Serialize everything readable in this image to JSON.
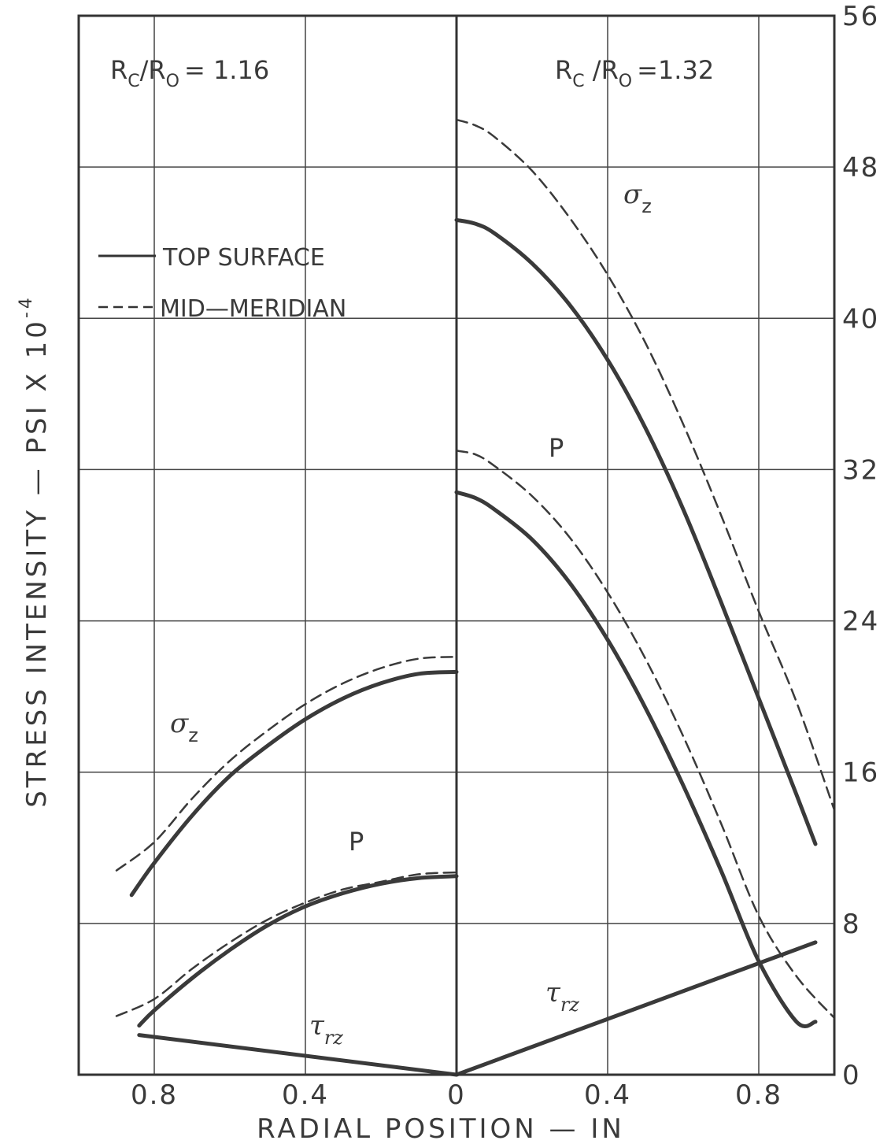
{
  "chart_data": {
    "type": "line",
    "title": "",
    "xlabel": "RADIAL POSITION — IN",
    "ylabel": "STRESS INTENSITY — PSI X 10",
    "ylabel_exponent": "-4",
    "x_ticks": [
      "0.8",
      "0.4",
      "0",
      "0.4",
      "0.8"
    ],
    "y_ticks": [
      "0",
      "8",
      "16",
      "24",
      "32",
      "40",
      "48",
      "56"
    ],
    "ylim": [
      0,
      56
    ],
    "grid": true,
    "legend": {
      "placement": "upper-left",
      "entries": [
        {
          "label": "TOP SURFACE",
          "style": "solid"
        },
        {
          "label": "MID—MERIDIAN",
          "style": "dashed"
        }
      ]
    },
    "panels": [
      {
        "side": "left",
        "annotation": {
          "main": "R",
          "sub1": "C",
          "mid": "/R",
          "sub2": "O",
          "tail": "= 1.16"
        },
        "xlim": [
          1.0,
          0
        ],
        "series": [
          {
            "curve": "sigma_z",
            "style": "solid",
            "x": [
              0.86,
              0.8,
              0.7,
              0.6,
              0.5,
              0.4,
              0.3,
              0.2,
              0.1,
              0.0
            ],
            "y": [
              9.5,
              11.2,
              13.7,
              15.8,
              17.4,
              18.8,
              19.9,
              20.7,
              21.2,
              21.3
            ]
          },
          {
            "curve": "sigma_z",
            "style": "dashed",
            "x": [
              0.9,
              0.8,
              0.7,
              0.6,
              0.5,
              0.4,
              0.3,
              0.2,
              0.1,
              0.0
            ],
            "y": [
              10.8,
              12.3,
              14.6,
              16.6,
              18.2,
              19.6,
              20.7,
              21.5,
              22.0,
              22.1
            ]
          },
          {
            "curve": "P",
            "style": "solid",
            "x": [
              0.84,
              0.8,
              0.7,
              0.6,
              0.5,
              0.4,
              0.3,
              0.2,
              0.1,
              0.0
            ],
            "y": [
              2.6,
              3.4,
              5.1,
              6.6,
              7.9,
              8.9,
              9.6,
              10.1,
              10.4,
              10.5
            ]
          },
          {
            "curve": "P",
            "style": "dashed",
            "x": [
              0.9,
              0.8,
              0.7,
              0.6,
              0.5,
              0.4,
              0.3,
              0.2,
              0.1,
              0.0
            ],
            "y": [
              3.1,
              4.0,
              5.6,
              7.0,
              8.2,
              9.1,
              9.8,
              10.2,
              10.6,
              10.7
            ]
          },
          {
            "curve": "tau_rz",
            "style": "solid",
            "x": [
              0.84,
              0.0
            ],
            "y": [
              2.1,
              0.0
            ]
          }
        ],
        "labels": [
          {
            "text": "σ",
            "sub": "z",
            "curve": "sigma_z"
          },
          {
            "text": "P",
            "sub": "",
            "curve": "P"
          },
          {
            "text": "τ",
            "sub": "rz",
            "curve": "tau_rz"
          }
        ]
      },
      {
        "side": "right",
        "annotation": {
          "main": "R",
          "sub1": "C",
          "mid": " /R",
          "sub2": "O",
          "tail": "=1.32"
        },
        "xlim": [
          0,
          1.0
        ],
        "series": [
          {
            "curve": "sigma_z",
            "style": "solid",
            "x": [
              0.0,
              0.05,
              0.1,
              0.2,
              0.3,
              0.4,
              0.5,
              0.6,
              0.7,
              0.8,
              0.9,
              0.95
            ],
            "y": [
              45.2,
              45.0,
              44.5,
              42.9,
              40.7,
              37.8,
              34.2,
              29.9,
              25.0,
              19.9,
              14.8,
              12.2
            ]
          },
          {
            "curve": "sigma_z",
            "style": "dashed",
            "x": [
              0.0,
              0.05,
              0.1,
              0.2,
              0.3,
              0.4,
              0.5,
              0.6,
              0.7,
              0.8,
              0.9,
              1.0
            ],
            "y": [
              50.5,
              50.2,
              49.6,
              47.8,
              45.3,
              42.3,
              38.7,
              34.4,
              29.6,
              24.5,
              19.7,
              14.0
            ]
          },
          {
            "curve": "P",
            "style": "solid",
            "x": [
              0.0,
              0.05,
              0.1,
              0.2,
              0.3,
              0.4,
              0.5,
              0.6,
              0.7,
              0.8,
              0.9,
              0.95
            ],
            "y": [
              30.8,
              30.5,
              29.9,
              28.3,
              26.0,
              23.0,
              19.4,
              15.3,
              10.8,
              6.0,
              2.8,
              2.8
            ]
          },
          {
            "curve": "P",
            "style": "dashed",
            "x": [
              0.0,
              0.05,
              0.1,
              0.2,
              0.3,
              0.4,
              0.5,
              0.6,
              0.7,
              0.8,
              0.9,
              1.0
            ],
            "y": [
              33.0,
              32.8,
              32.2,
              30.6,
              28.4,
              25.5,
              22.0,
              17.9,
              13.3,
              8.4,
              5.2,
              3.0
            ]
          },
          {
            "curve": "tau_rz",
            "style": "solid",
            "x": [
              0.0,
              0.95
            ],
            "y": [
              0.0,
              7.0
            ]
          }
        ],
        "labels": [
          {
            "text": "σ",
            "sub": "z",
            "curve": "sigma_z"
          },
          {
            "text": "P",
            "sub": "",
            "curve": "P"
          },
          {
            "text": "τ",
            "sub": "rz",
            "curve": "tau_rz"
          }
        ]
      }
    ]
  }
}
